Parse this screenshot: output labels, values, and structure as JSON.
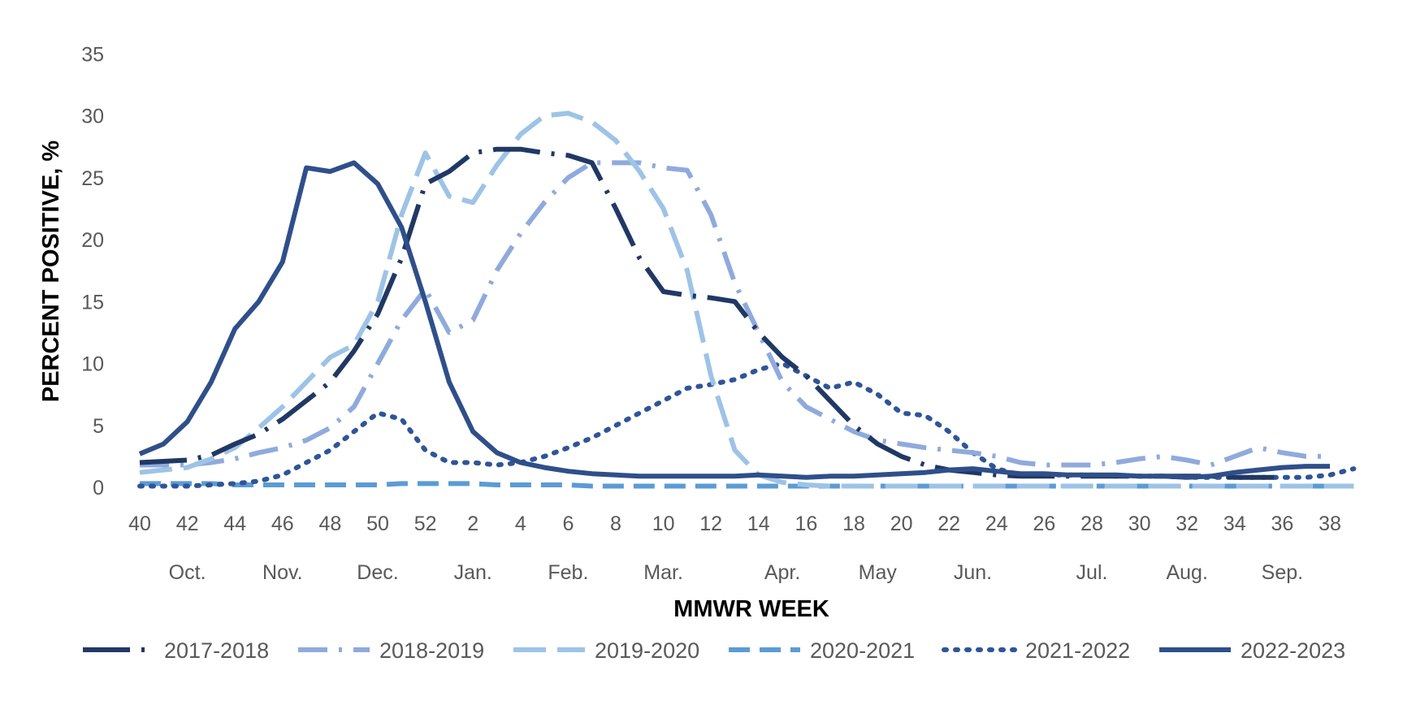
{
  "chart_data": {
    "type": "line",
    "xlabel": "MMWR WEEK",
    "ylabel": "PERCENT POSITIVE, %",
    "ylim": [
      0,
      35
    ],
    "yticks": [
      0,
      5,
      10,
      15,
      20,
      25,
      30,
      35
    ],
    "grid": false,
    "legend_position": "bottom",
    "x": [
      40,
      41,
      42,
      43,
      44,
      45,
      46,
      47,
      48,
      49,
      50,
      51,
      52,
      1,
      2,
      3,
      4,
      5,
      6,
      7,
      8,
      9,
      10,
      11,
      12,
      13,
      14,
      15,
      16,
      17,
      18,
      19,
      20,
      21,
      22,
      23,
      24,
      25,
      26,
      27,
      28,
      29,
      30,
      31,
      32,
      33,
      34,
      35,
      36,
      37,
      38,
      39
    ],
    "x_tick_labels": [
      "40",
      "42",
      "44",
      "46",
      "48",
      "50",
      "52",
      "2",
      "4",
      "6",
      "8",
      "10",
      "12",
      "14",
      "16",
      "18",
      "20",
      "22",
      "24",
      "26",
      "28",
      "30",
      "32",
      "34",
      "36",
      "38"
    ],
    "month_labels": [
      {
        "label": "Oct.",
        "at": 42
      },
      {
        "label": "Nov.",
        "at": 46
      },
      {
        "label": "Dec.",
        "at": 50
      },
      {
        "label": "Jan.",
        "at": 54
      },
      {
        "label": "Feb.",
        "at": 58
      },
      {
        "label": "Mar.",
        "at": 62
      },
      {
        "label": "Apr.",
        "at": 67
      },
      {
        "label": "May",
        "at": 71
      },
      {
        "label": "Jun.",
        "at": 75
      },
      {
        "label": "Jul.",
        "at": 80
      },
      {
        "label": "Aug.",
        "at": 84
      },
      {
        "label": "Sep.",
        "at": 88
      }
    ],
    "series": [
      {
        "name": "2017-2018",
        "color": "#203864",
        "style": "dashdot-long",
        "values": [
          2.0,
          2.1,
          2.2,
          2.6,
          3.5,
          4.3,
          5.5,
          7.0,
          8.5,
          11.0,
          14.0,
          18.5,
          24.5,
          25.5,
          27.0,
          27.3,
          27.3,
          27.0,
          26.8,
          26.2,
          22.5,
          18.5,
          15.8,
          15.5,
          15.3,
          15.0,
          12.5,
          10.5,
          9.0,
          7.0,
          5.0,
          3.5,
          2.5,
          1.8,
          1.4,
          1.2,
          1.0,
          0.9,
          0.9,
          0.9,
          0.9,
          0.9,
          0.9,
          0.9,
          0.9,
          0.9,
          0.8,
          0.8,
          0.8,
          null,
          null,
          null
        ]
      },
      {
        "name": "2018-2019",
        "color": "#8faadc",
        "style": "dashdot",
        "values": [
          1.8,
          1.8,
          1.8,
          2.0,
          2.3,
          2.8,
          3.2,
          3.8,
          4.8,
          6.5,
          10.0,
          13.5,
          16.0,
          12.5,
          13.5,
          17.5,
          20.5,
          23.0,
          25.0,
          26.2,
          26.2,
          26.2,
          25.8,
          25.6,
          22.0,
          16.5,
          12.5,
          8.5,
          6.5,
          5.5,
          4.5,
          3.8,
          3.5,
          3.2,
          3.0,
          2.8,
          2.5,
          2.0,
          1.8,
          1.8,
          1.8,
          2.0,
          2.3,
          2.5,
          2.2,
          1.8,
          2.5,
          3.2,
          2.8,
          2.5,
          2.5,
          null
        ]
      },
      {
        "name": "2019-2020",
        "color": "#9dc3e6",
        "style": "dash-long",
        "values": [
          1.2,
          1.4,
          1.6,
          2.3,
          3.2,
          4.8,
          6.5,
          8.5,
          10.5,
          11.5,
          15.0,
          22.0,
          27.0,
          23.5,
          23.0,
          26.0,
          28.5,
          30.0,
          30.2,
          29.5,
          28.0,
          25.5,
          22.5,
          17.5,
          9.0,
          3.0,
          1.0,
          0.4,
          0.2,
          0.1,
          0.1,
          0.1,
          0.1,
          0.1,
          0.1,
          0.1,
          0.1,
          0.1,
          0.1,
          0.1,
          0.1,
          0.1,
          0.1,
          0.1,
          0.1,
          0.1,
          0.1,
          0.1,
          0.1,
          0.1,
          0.1,
          0.1
        ]
      },
      {
        "name": "2020-2021",
        "color": "#5b9bd5",
        "style": "dash",
        "values": [
          0.3,
          0.3,
          0.3,
          0.3,
          0.2,
          0.2,
          0.2,
          0.2,
          0.2,
          0.2,
          0.2,
          0.3,
          0.3,
          0.3,
          0.3,
          0.2,
          0.2,
          0.2,
          0.2,
          0.1,
          0.1,
          0.1,
          0.1,
          0.1,
          0.1,
          0.1,
          0.1,
          0.1,
          0.1,
          0.1,
          0.1,
          0.1,
          0.1,
          0.1,
          0.1,
          0.1,
          0.1,
          0.1,
          0.1,
          0.1,
          0.1,
          0.1,
          0.1,
          0.1,
          0.1,
          0.1,
          0.1,
          0.1,
          0.1,
          0.1,
          0.1,
          0.1
        ]
      },
      {
        "name": "2021-2022",
        "color": "#2f5597",
        "style": "dot",
        "values": [
          0.1,
          0.1,
          0.1,
          0.2,
          0.3,
          0.5,
          1.0,
          2.0,
          3.0,
          4.5,
          6.0,
          5.5,
          3.0,
          2.0,
          2.0,
          1.8,
          2.0,
          2.5,
          3.2,
          4.0,
          5.0,
          6.0,
          7.0,
          8.0,
          8.3,
          8.7,
          9.5,
          10.0,
          9.0,
          8.0,
          8.5,
          7.5,
          6.0,
          5.8,
          4.5,
          2.8,
          1.5,
          1.0,
          1.0,
          1.0,
          1.0,
          0.9,
          0.9,
          0.9,
          0.8,
          0.8,
          0.8,
          0.8,
          0.8,
          0.8,
          1.0,
          1.5
        ]
      },
      {
        "name": "2022-2023",
        "color": "#2f4f8a",
        "style": "solid",
        "values": [
          2.7,
          3.5,
          5.3,
          8.5,
          12.8,
          15.0,
          18.2,
          25.8,
          25.5,
          26.2,
          24.5,
          21.0,
          15.0,
          8.5,
          4.5,
          2.8,
          2.0,
          1.6,
          1.3,
          1.1,
          1.0,
          0.9,
          0.9,
          0.9,
          0.9,
          0.9,
          1.0,
          0.9,
          0.8,
          0.9,
          0.9,
          1.0,
          1.1,
          1.2,
          1.4,
          1.5,
          1.3,
          1.1,
          1.1,
          1.0,
          1.0,
          1.0,
          0.9,
          0.9,
          0.8,
          0.9,
          1.2,
          1.4,
          1.6,
          1.7,
          1.7,
          null
        ]
      }
    ]
  }
}
